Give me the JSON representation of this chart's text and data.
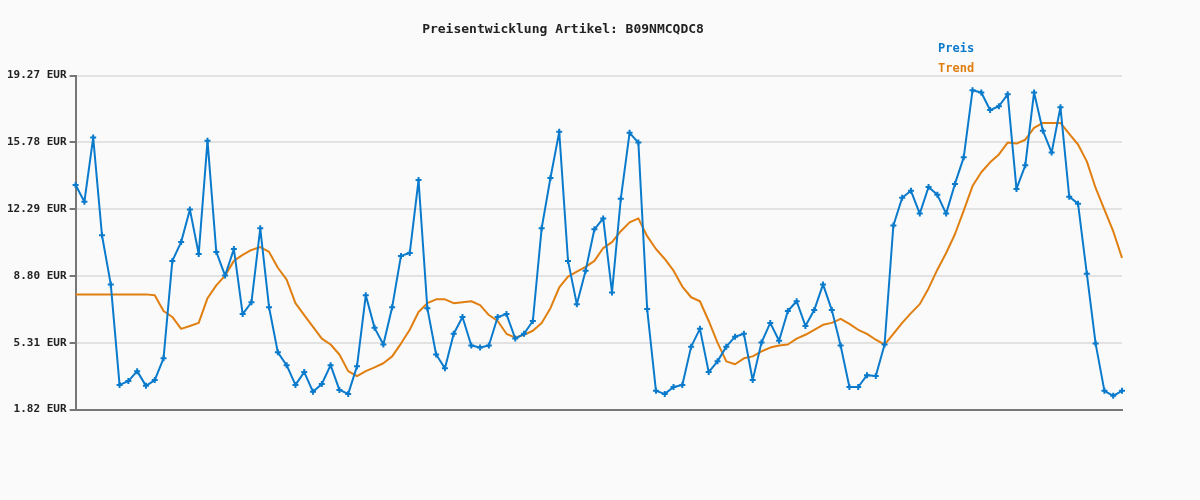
{
  "chart_data": {
    "type": "line",
    "title": "Preisentwicklung Artikel: B09NMCQDC8",
    "categories": [
      null,
      null,
      null,
      null,
      null,
      null,
      null,
      null,
      null,
      null,
      null,
      null,
      null,
      null,
      null,
      null,
      null,
      null,
      null,
      null,
      null,
      null,
      null,
      null,
      null,
      null,
      null,
      null,
      null,
      null,
      null,
      null,
      null,
      null,
      null,
      null,
      null,
      null,
      null,
      null,
      null,
      null,
      null,
      null,
      null,
      null,
      null,
      null,
      null,
      null,
      null,
      null,
      null,
      null,
      null,
      null,
      null,
      null,
      null,
      null,
      null,
      null,
      null,
      null,
      null,
      null,
      null,
      null,
      null,
      null,
      null,
      null,
      null,
      null,
      null,
      null,
      null,
      null,
      null,
      null,
      null,
      null,
      null,
      null,
      null,
      null,
      null,
      null,
      null,
      null,
      null,
      null,
      null,
      null,
      null,
      null,
      null,
      null,
      null,
      null,
      null,
      null,
      null,
      null,
      null,
      null,
      null,
      null,
      null,
      null,
      null,
      null,
      null,
      null,
      null,
      null,
      null,
      null,
      null,
      null
    ],
    "series": [
      {
        "name": "Preis",
        "color": "#0a7acc",
        "marker": "cross",
        "values": [
          13.55,
          12.68,
          16.03,
          10.93,
          8.36,
          3.11,
          3.31,
          3.83,
          3.06,
          3.36,
          4.5,
          9.59,
          10.57,
          12.27,
          9.95,
          15.87,
          10.06,
          8.82,
          10.21,
          6.81,
          7.43,
          11.29,
          7.17,
          4.81,
          4.14,
          3.11,
          3.78,
          2.75,
          3.16,
          4.14,
          2.85,
          2.64,
          4.08,
          7.79,
          6.09,
          5.22,
          7.17,
          9.85,
          10.0,
          13.81,
          7.12,
          4.7,
          3.98,
          5.78,
          6.66,
          5.17,
          5.06,
          5.17,
          6.66,
          6.81,
          5.53,
          5.78,
          6.45,
          11.29,
          13.92,
          16.33,
          9.59,
          7.33,
          9.08,
          11.24,
          11.81,
          7.94,
          12.83,
          16.28,
          15.77,
          7.07,
          2.8,
          2.64,
          3.0,
          3.11,
          5.11,
          6.04,
          3.78,
          4.34,
          5.11,
          5.63,
          5.78,
          3.36,
          5.32,
          6.35,
          5.42,
          6.97,
          7.48,
          6.19,
          7.02,
          8.36,
          7.02,
          5.17,
          3.0,
          3.0,
          3.62,
          3.57,
          5.22,
          11.44,
          12.89,
          13.25,
          12.06,
          13.45,
          13.04,
          12.06,
          13.61,
          15.0,
          18.5,
          18.39,
          17.47,
          17.67,
          18.29,
          13.35,
          14.58,
          18.39,
          16.39,
          15.25,
          17.62,
          12.94,
          12.58,
          8.92,
          5.27,
          2.8,
          2.54,
          2.8
        ]
      },
      {
        "name": "Trend",
        "color": "#e07f10",
        "marker": "none",
        "values": [
          7.84,
          7.84,
          7.84,
          7.84,
          7.84,
          7.84,
          7.84,
          7.84,
          7.84,
          7.79,
          6.97,
          6.66,
          6.04,
          6.19,
          6.35,
          7.64,
          8.31,
          8.82,
          9.59,
          9.9,
          10.16,
          10.31,
          10.06,
          9.23,
          8.61,
          7.38,
          6.76,
          6.14,
          5.53,
          5.22,
          4.7,
          3.83,
          3.57,
          3.83,
          4.03,
          4.24,
          4.6,
          5.27,
          5.99,
          6.92,
          7.38,
          7.58,
          7.58,
          7.38,
          7.43,
          7.48,
          7.28,
          6.76,
          6.45,
          5.78,
          5.58,
          5.73,
          5.94,
          6.35,
          7.12,
          8.2,
          8.77,
          9.03,
          9.28,
          9.59,
          10.26,
          10.57,
          11.14,
          11.6,
          11.81,
          10.88,
          10.21,
          9.69,
          9.08,
          8.25,
          7.69,
          7.48,
          6.45,
          5.32,
          4.34,
          4.19,
          4.5,
          4.6,
          4.86,
          5.06,
          5.17,
          5.22,
          5.53,
          5.73,
          5.99,
          6.25,
          6.35,
          6.56,
          6.3,
          5.99,
          5.78,
          5.47,
          5.22,
          5.78,
          6.35,
          6.86,
          7.33,
          8.15,
          9.13,
          10.0,
          10.98,
          12.22,
          13.5,
          14.22,
          14.74,
          15.15,
          15.77,
          15.72,
          15.92,
          16.54,
          16.8,
          16.8,
          16.8,
          16.23,
          15.67,
          14.79,
          13.4,
          12.27,
          11.14,
          9.75
        ]
      }
    ],
    "ylim": [
      1.82,
      19.27
    ],
    "yticks": [
      {
        "value": 1.82,
        "label": "1.82 EUR"
      },
      {
        "value": 5.31,
        "label": "5.31 EUR"
      },
      {
        "value": 8.8,
        "label": "8.80 EUR"
      },
      {
        "value": 12.29,
        "label": "12.29 EUR"
      },
      {
        "value": 15.78,
        "label": "15.78 EUR"
      },
      {
        "value": 19.27,
        "label": "19.27 EUR"
      }
    ],
    "grid": "y",
    "legend": "top right",
    "line_style": "solid"
  }
}
